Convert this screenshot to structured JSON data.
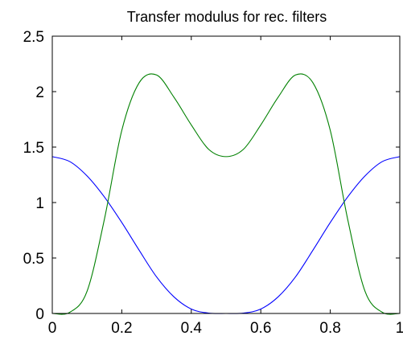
{
  "chart_data": {
    "type": "line",
    "title": "Transfer modulus for rec. filters",
    "xlabel": "",
    "ylabel": "",
    "xlim": [
      0,
      1
    ],
    "ylim": [
      0,
      2.5
    ],
    "x_ticks": [
      0,
      0.2,
      0.4,
      0.6,
      0.8,
      1
    ],
    "x_tick_labels": [
      "0",
      "0.2",
      "0.4",
      "0.6",
      "0.8",
      "1"
    ],
    "y_ticks": [
      0,
      0.5,
      1,
      1.5,
      2,
      2.5
    ],
    "y_tick_labels": [
      "0",
      "0.5",
      "1",
      "1.5",
      "2",
      "2.5"
    ],
    "grid": false,
    "legend": "none",
    "x": [
      0,
      0.05,
      0.1,
      0.15,
      0.2,
      0.25,
      0.3,
      0.35,
      0.4,
      0.45,
      0.5,
      0.55,
      0.6,
      0.65,
      0.7,
      0.75,
      0.8,
      0.85,
      0.9,
      0.95,
      1
    ],
    "series": [
      {
        "color": "#0000ff",
        "values": [
          1.414,
          1.37,
          1.24,
          1.05,
          0.82,
          0.57,
          0.33,
          0.15,
          0.04,
          0.003,
          0.0,
          0.003,
          0.04,
          0.15,
          0.33,
          0.57,
          0.82,
          1.05,
          1.24,
          1.37,
          1.414
        ]
      },
      {
        "color": "#008000",
        "values": [
          0.0,
          0.01,
          0.2,
          0.85,
          1.65,
          2.08,
          2.15,
          1.95,
          1.7,
          1.48,
          1.414,
          1.48,
          1.7,
          1.95,
          2.15,
          2.08,
          1.65,
          0.85,
          0.2,
          0.01,
          0.0
        ]
      }
    ]
  }
}
